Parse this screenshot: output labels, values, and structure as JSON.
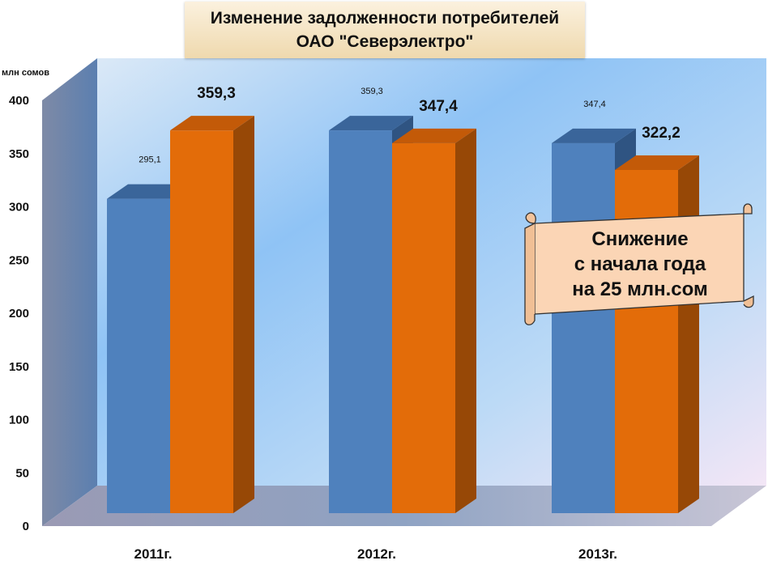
{
  "chart_data": {
    "type": "bar",
    "title": [
      "Изменение задолженности потребителей",
      "ОАО \"Северэлектро\""
    ],
    "ylabel": "млн сомов",
    "ylim": [
      0,
      400
    ],
    "yticks": [
      "0",
      "50",
      "100",
      "150",
      "200",
      "250",
      "300",
      "350",
      "400"
    ],
    "categories": [
      "2011г.",
      "2012г.",
      "2013г."
    ],
    "series": [
      {
        "values": [
          295.1,
          359.3,
          347.4
        ],
        "labels": [
          "295,1",
          "359,3",
          "347,4"
        ],
        "color": "#4f81bd"
      },
      {
        "values": [
          359.3,
          347.4,
          322.2
        ],
        "labels": [
          "359,3",
          "347,4",
          "322,2"
        ],
        "color": "#e36c09"
      }
    ],
    "grid": false,
    "legend": "none"
  },
  "callout": {
    "line1": "Снижение",
    "line2": "с начала года",
    "line3": "на 25 млн.сом"
  },
  "colors": {
    "blue": "#4f81bd",
    "orange": "#e36c09",
    "callout_fill": "#fbd5b5",
    "title_fill": "#f5e3c0"
  }
}
